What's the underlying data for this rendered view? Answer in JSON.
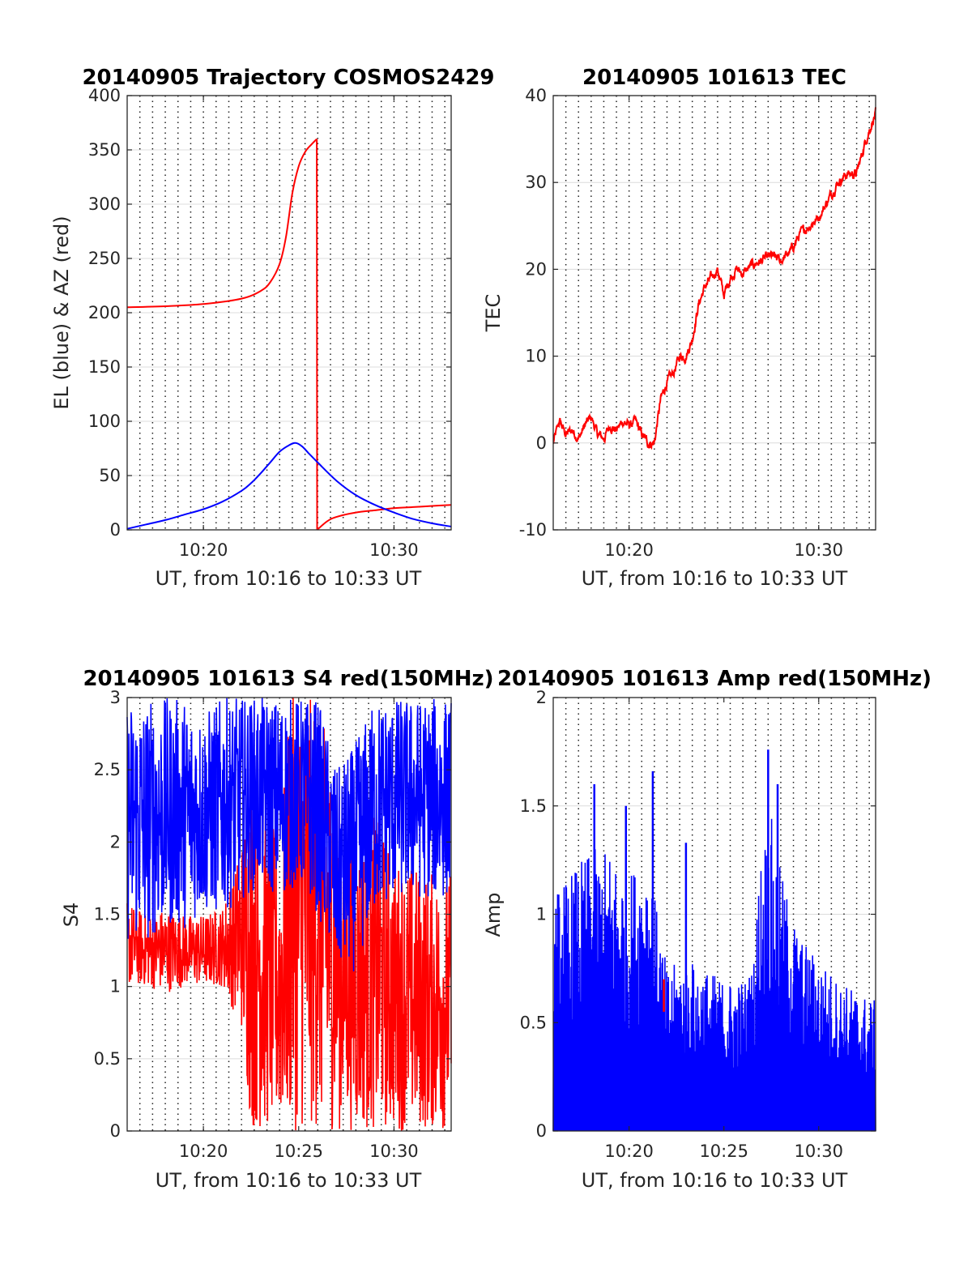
{
  "colors": {
    "red": "#ff0000",
    "blue": "#0000ff",
    "axis": "#262626",
    "grid": "#dcdcdc"
  },
  "chart_data": [
    {
      "type": "line",
      "title": "20140905 Trajectory COSMOS2429",
      "xlabel": "UT, from 10:16 to 10:33 UT",
      "ylabel": "EL (blue) & AZ (red)",
      "xlim": [
        "10:16",
        "10:33"
      ],
      "ylim": [
        0,
        400
      ],
      "yticks": [
        0,
        50,
        100,
        150,
        200,
        250,
        300,
        350,
        400
      ],
      "xticks": [
        "10:20",
        "10:30"
      ],
      "grid": "horizontal solid, vertical dotted every 40 s",
      "series": [
        {
          "color": "#ff0000",
          "x": [
            "10:16",
            "10:18",
            "10:20",
            "10:22",
            "10:23",
            "10:23:30",
            "10:24",
            "10:24:20",
            "10:24:40",
            "10:25",
            "10:25:20",
            "10:25:40",
            "10:25:57"
          ],
          "y": [
            205,
            206,
            208,
            213,
            220,
            228,
            245,
            270,
            310,
            335,
            348,
            355,
            360
          ],
          "segment": 1
        },
        {
          "color": "#ff0000",
          "x": [
            "10:25:57",
            "10:25:58"
          ],
          "y": [
            360,
            0
          ],
          "segment": 2
        },
        {
          "color": "#ff0000",
          "x": [
            "10:25:58",
            "10:26:30",
            "10:27",
            "10:28",
            "10:29",
            "10:30",
            "10:31",
            "10:32",
            "10:33"
          ],
          "y": [
            0,
            8,
            12,
            16,
            18,
            20,
            21,
            22,
            23
          ],
          "segment": 3
        },
        {
          "color": "#0000ff",
          "x": [
            "10:16",
            "10:17",
            "10:18",
            "10:19",
            "10:20",
            "10:21",
            "10:22",
            "10:22:30",
            "10:23",
            "10:23:30",
            "10:24",
            "10:24:30",
            "10:24:50",
            "10:25:10",
            "10:25:30",
            "10:26",
            "10:27",
            "10:28",
            "10:29",
            "10:30",
            "10:31",
            "10:32",
            "10:33"
          ],
          "y": [
            1,
            5,
            9,
            14,
            19,
            26,
            36,
            43,
            52,
            62,
            72,
            78,
            80,
            77,
            71,
            62,
            45,
            32,
            23,
            16,
            10,
            6,
            3
          ]
        }
      ]
    },
    {
      "type": "line",
      "title": "20140905 101613 TEC",
      "xlabel": "UT, from 10:16 to 10:33 UT",
      "ylabel": "TEC",
      "xlim": [
        "10:16",
        "10:33"
      ],
      "ylim": [
        -10,
        40
      ],
      "yticks": [
        -10,
        0,
        10,
        20,
        30,
        40
      ],
      "xticks": [
        "10:20",
        "10:30"
      ],
      "grid": "horizontal solid, vertical dotted every 40 s",
      "series": [
        {
          "color": "#ff0000",
          "noise": 0.8,
          "x": [
            "10:16",
            "10:16:20",
            "10:16:40",
            "10:17",
            "10:17:20",
            "10:17:40",
            "10:18",
            "10:18:20",
            "10:18:40",
            "10:19",
            "10:19:20",
            "10:19:40",
            "10:20",
            "10:20:20",
            "10:20:40",
            "10:21",
            "10:21:20",
            "10:21:40",
            "10:22",
            "10:22:20",
            "10:22:40",
            "10:23",
            "10:23:20",
            "10:23:40",
            "10:24",
            "10:24:20",
            "10:24:40",
            "10:25",
            "10:25:20",
            "10:25:40",
            "10:26",
            "10:26:30",
            "10:27",
            "10:27:30",
            "10:28",
            "10:28:30",
            "10:29",
            "10:29:30",
            "10:30",
            "10:30:30",
            "10:31",
            "10:31:30",
            "10:32",
            "10:32:30",
            "10:33"
          ],
          "y": [
            0,
            2.5,
            1,
            1.5,
            0.5,
            2,
            3,
            1,
            0.5,
            2,
            1.5,
            2.5,
            2,
            2.5,
            1,
            0,
            0,
            5,
            7,
            8,
            10,
            10,
            12,
            16,
            18,
            19,
            20,
            17,
            19,
            20,
            19.5,
            20.5,
            21,
            21.5,
            21,
            22,
            24,
            25,
            26,
            28,
            30,
            31,
            31,
            35,
            38
          ]
        }
      ]
    },
    {
      "type": "line",
      "title": "20140905 101613 S4 red(150MHz)",
      "xlabel": "UT, from 10:16 to 10:33 UT",
      "ylabel": "S4",
      "xlim": [
        "10:16",
        "10:33"
      ],
      "ylim": [
        0,
        3
      ],
      "yticks": [
        0,
        0.5,
        1,
        1.5,
        2,
        2.5,
        3
      ],
      "xticks": [
        "10:20",
        "10:25",
        "10:30"
      ],
      "grid": "horizontal solid, vertical dotted every 40 s",
      "series": [
        {
          "color": "#ff0000",
          "style": "dense noisy band",
          "x": [
            "10:16",
            "10:17",
            "10:18",
            "10:19",
            "10:20",
            "10:21",
            "10:22",
            "10:22:30",
            "10:23",
            "10:24",
            "10:24:30",
            "10:25",
            "10:26",
            "10:27",
            "10:28",
            "10:29",
            "10:30",
            "10:31",
            "10:32",
            "10:33"
          ],
          "low": [
            1.0,
            1.0,
            0.95,
            1.0,
            1.0,
            1.0,
            0.7,
            0.0,
            0.0,
            0.0,
            0.0,
            0.0,
            0.0,
            0.0,
            0.0,
            0.0,
            0.0,
            0.0,
            0.0,
            0.0
          ],
          "high": [
            1.6,
            1.5,
            1.55,
            1.5,
            1.5,
            1.55,
            2.0,
            2.5,
            2.3,
            2.0,
            3.0,
            3.0,
            3.0,
            2.4,
            2.0,
            2.2,
            1.9,
            1.85,
            1.8,
            1.8
          ]
        },
        {
          "color": "#0000ff",
          "style": "dense noisy band",
          "x": [
            "10:16",
            "10:17",
            "10:18",
            "10:19",
            "10:20",
            "10:21",
            "10:22",
            "10:23",
            "10:24",
            "10:25",
            "10:26",
            "10:27",
            "10:28",
            "10:29",
            "10:30",
            "10:31",
            "10:32",
            "10:33"
          ],
          "low": [
            1.3,
            1.3,
            1.4,
            1.4,
            1.5,
            1.5,
            1.6,
            1.7,
            1.6,
            1.7,
            1.5,
            1.1,
            1.1,
            1.5,
            1.6,
            1.6,
            1.6,
            1.6
          ],
          "high": [
            3.0,
            3.0,
            3.0,
            3.0,
            2.9,
            3.0,
            3.0,
            3.0,
            3.0,
            3.0,
            3.0,
            2.5,
            2.7,
            3.0,
            3.0,
            3.0,
            3.0,
            3.0
          ]
        }
      ]
    },
    {
      "type": "line",
      "title": "20140905 101613 Amp red(150MHz)",
      "xlabel": "UT, from 10:16 to 10:33 UT",
      "ylabel": "Amp",
      "xlim": [
        "10:16",
        "10:33"
      ],
      "ylim": [
        0,
        2
      ],
      "yticks": [
        0,
        0.5,
        1,
        1.5,
        2
      ],
      "xticks": [
        "10:20",
        "10:25",
        "10:30"
      ],
      "grid": "horizontal solid, vertical dotted every 40 s",
      "series": [
        {
          "color": "#0000ff",
          "style": "dense noisy envelope from 0",
          "x": [
            "10:16",
            "10:17",
            "10:18",
            "10:19",
            "10:20",
            "10:21",
            "10:21:30",
            "10:22",
            "10:23",
            "10:24",
            "10:25",
            "10:26",
            "10:26:30",
            "10:27",
            "10:27:30",
            "10:28",
            "10:29",
            "10:30",
            "10:31",
            "10:32",
            "10:33"
          ],
          "env": [
            1.1,
            1.2,
            1.3,
            1.3,
            1.2,
            1.3,
            1.0,
            0.75,
            0.8,
            0.75,
            0.7,
            0.7,
            0.75,
            1.35,
            1.45,
            1.2,
            0.9,
            0.8,
            0.7,
            0.65,
            0.6
          ],
          "peaks": [
            {
              "x": "10:18:10",
              "y": 1.6
            },
            {
              "x": "10:19:50",
              "y": 1.5
            },
            {
              "x": "10:21:15",
              "y": 1.66
            },
            {
              "x": "10:23",
              "y": 1.33
            },
            {
              "x": "10:27:20",
              "y": 1.76
            },
            {
              "x": "10:27:50",
              "y": 1.6
            }
          ]
        }
      ]
    }
  ]
}
